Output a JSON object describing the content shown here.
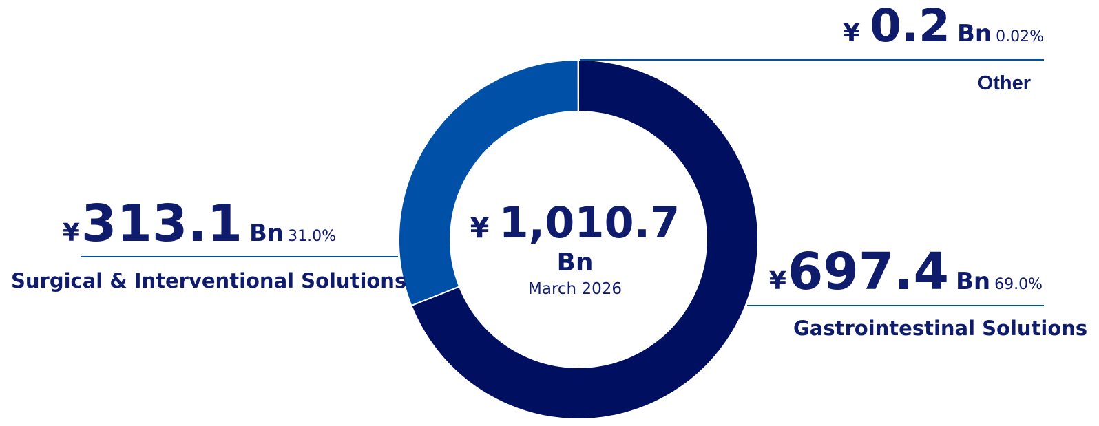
{
  "chart_data": {
    "type": "donut",
    "categories": [
      "Gastrointestinal Solutions",
      "Surgical & Interventional Solutions",
      "Other"
    ],
    "values": [
      697.4,
      313.1,
      0.2
    ],
    "percent_labels": [
      "69.0%",
      "31.0%",
      "0.02%"
    ],
    "colors": [
      "#000f5f",
      "#0050a8",
      "#d8dce8"
    ],
    "currency": "¥",
    "unit": "Bn",
    "total_label": "1,010.7",
    "date": "March 2026"
  }
}
